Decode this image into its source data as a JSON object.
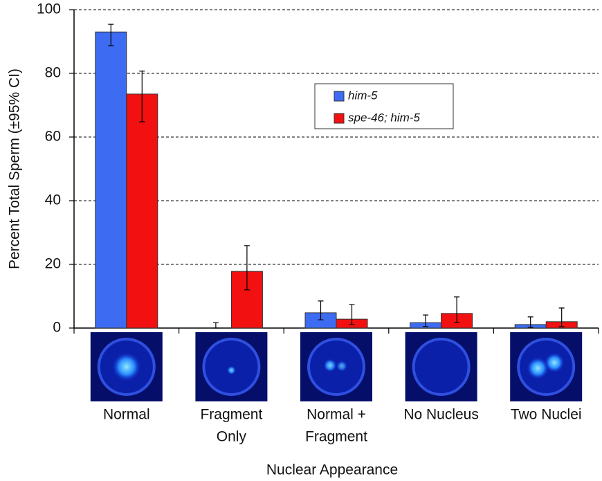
{
  "chart_data": {
    "type": "bar",
    "y_label": "Percent Total Sperm (±95% CI)",
    "x_label": "Nuclear Appearance",
    "categories": [
      [
        "Normal"
      ],
      [
        "Fragment",
        "Only"
      ],
      [
        "Normal +",
        "Fragment"
      ],
      [
        "No Nucleus"
      ],
      [
        "Two Nuclei"
      ]
    ],
    "series": [
      {
        "name": "him-5",
        "color": "#3d6cf2",
        "values": [
          93,
          0,
          4.8,
          1.7,
          1.1
        ],
        "ci_low": [
          88.7,
          0,
          2.6,
          0.5,
          0.2
        ],
        "ci_high": [
          95.4,
          1.7,
          8.5,
          4.1,
          3.5
        ]
      },
      {
        "name": "spe-46; him-5",
        "color": "#f21010",
        "values": [
          73.5,
          17.8,
          2.8,
          4.6,
          2.0
        ],
        "ci_low": [
          64.8,
          12.0,
          1.1,
          1.7,
          0.4
        ],
        "ci_high": [
          80.7,
          25.9,
          7.4,
          9.8,
          6.3
        ]
      }
    ],
    "ylim": [
      0,
      100
    ],
    "yticks": [
      0,
      20,
      40,
      60,
      80,
      100
    ],
    "grid": true
  }
}
